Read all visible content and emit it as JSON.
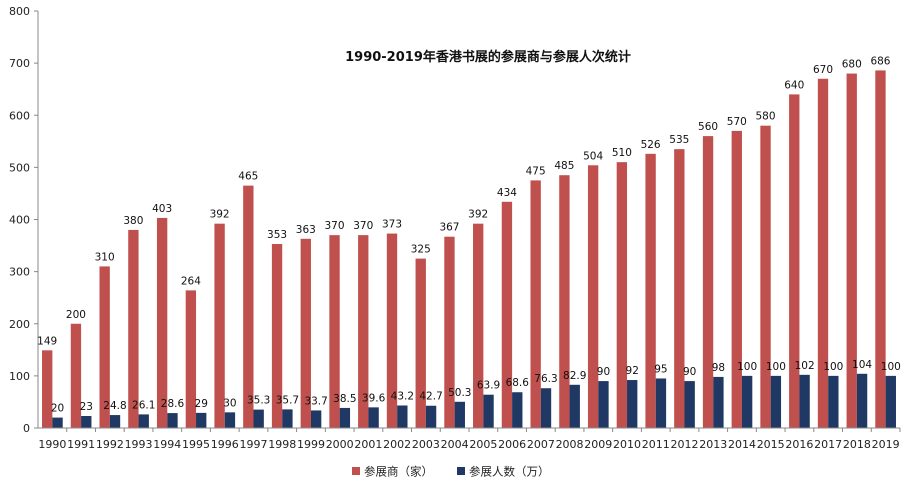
{
  "chart_data": {
    "type": "bar",
    "title": "1990-2019年香港书展的参展商与参展人次统计",
    "categories": [
      "1990",
      "1991",
      "1992",
      "1993",
      "1994",
      "1995",
      "1996",
      "1997",
      "1998",
      "1999",
      "2000",
      "2001",
      "2002",
      "2003",
      "2004",
      "2005",
      "2006",
      "2007",
      "2008",
      "2009",
      "2010",
      "2011",
      "2012",
      "2013",
      "2014",
      "2015",
      "2016",
      "2017",
      "2018",
      "2019"
    ],
    "series": [
      {
        "name": "参展商（家）",
        "color": "#c0504d",
        "values": [
          149,
          200,
          310,
          380,
          403,
          264,
          392,
          465,
          353,
          363,
          370,
          370,
          373,
          325,
          367,
          392,
          434,
          475,
          485,
          504,
          510,
          526,
          535,
          560,
          570,
          580,
          640,
          670,
          680,
          686
        ],
        "labels": [
          "149",
          "200",
          "310",
          "380",
          "403",
          "264",
          "392",
          "465",
          "353",
          "363",
          "370",
          "370",
          "373",
          "325",
          "367",
          "392",
          "434",
          "475",
          "485",
          "504",
          "510",
          "526",
          "535",
          "560",
          "570",
          "580",
          "640",
          "670",
          "680",
          "686"
        ]
      },
      {
        "name": "参展人数（万）",
        "color": "#1f3864",
        "values": [
          20,
          23,
          24.8,
          26.1,
          28.6,
          29,
          30,
          35.3,
          35.7,
          33.7,
          38.5,
          39.6,
          43.2,
          42.7,
          50.3,
          63.9,
          68.6,
          76.3,
          82.9,
          90,
          92,
          95,
          90,
          98,
          100,
          100,
          102,
          100,
          104,
          100
        ],
        "labels": [
          "20",
          "23",
          "24.8",
          "26.1",
          "28.6",
          "29",
          "30",
          "35.3",
          "35.7",
          "33.7",
          "38.5",
          "39.6",
          "43.2",
          "42.7",
          "50.3",
          "63.9",
          "68.6",
          "76.3",
          "82.9",
          "90",
          "92",
          "95",
          "90",
          "98",
          "100",
          "100",
          "102",
          "100",
          "104",
          "100"
        ]
      }
    ],
    "ylim": [
      0,
      800
    ],
    "yticks": [
      "0",
      "100",
      "200",
      "300",
      "400",
      "500",
      "600",
      "700",
      "800"
    ],
    "grid": false,
    "legend_position": "bottom"
  }
}
